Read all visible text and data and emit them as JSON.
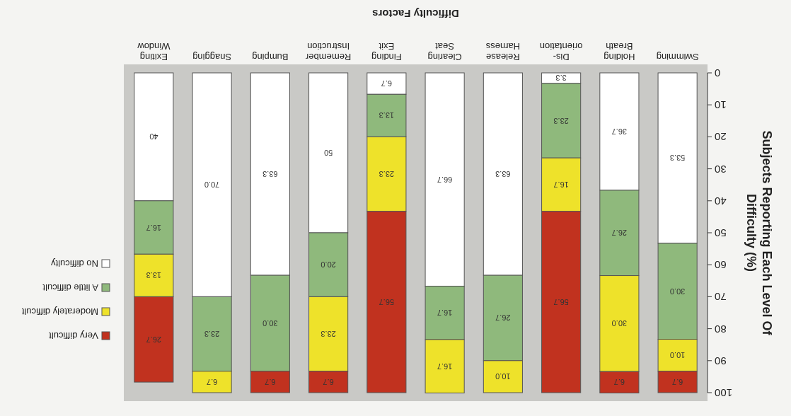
{
  "chart_data": {
    "type": "bar",
    "stacked": true,
    "xlabel": "Difficulty Factors",
    "ylabel": "Subjects Reporting Each Level Of Difficulty (%)",
    "legend": "left",
    "categories": [
      "Exiting Window",
      "Snagging",
      "Bumping",
      "Remember Instruction",
      "Finding Exit",
      "Clearing Seat",
      "Release Harness",
      "Dis-orientation",
      "Holding Breath",
      "Swimming"
    ],
    "ylim": [
      100,
      0
    ],
    "yticks": [
      0,
      10,
      20,
      30,
      40,
      50,
      60,
      70,
      80,
      90,
      100
    ],
    "series": [
      {
        "name": "No difficulty",
        "color": "#ffffff",
        "values": [
          40,
          70.0,
          63.3,
          50,
          6.7,
          66.7,
          63.3,
          3.3,
          36.7,
          53.3
        ],
        "value_labels": [
          "40",
          "70.0",
          "63.3",
          "50",
          "6.7",
          "66.7",
          "63.3",
          "3.3",
          "36.7",
          "53.3"
        ]
      },
      {
        "name": "A little difficult",
        "color": "#8fb97c",
        "values": [
          16.7,
          23.3,
          30.0,
          20.0,
          13.3,
          16.7,
          26.7,
          23.3,
          26.7,
          30.0
        ],
        "value_labels": [
          "16.7",
          "23.3",
          "30.0",
          "20.0",
          "13.3",
          "16.7",
          "26.7",
          "23.3",
          "26.7",
          "30.0"
        ]
      },
      {
        "name": "Moderately difficult",
        "color": "#eee22a",
        "values": [
          13.3,
          6.7,
          0,
          23.3,
          23.3,
          16.7,
          10.0,
          16.7,
          30.0,
          10.0
        ],
        "value_labels": [
          "13.3",
          "6.7",
          null,
          "23.3",
          "23.3",
          "16.7",
          "10.0",
          "16.7",
          "30.0",
          "10.0"
        ]
      },
      {
        "name": "Very difficult",
        "color": "#c1321f",
        "values": [
          26.7,
          0,
          6.7,
          6.7,
          56.7,
          0,
          0,
          56.7,
          6.7,
          6.7
        ],
        "value_labels": [
          "26.7",
          null,
          "6.7",
          "6.7",
          "56.7",
          null,
          null,
          "56.7",
          "6.7",
          "6.7"
        ]
      }
    ]
  }
}
